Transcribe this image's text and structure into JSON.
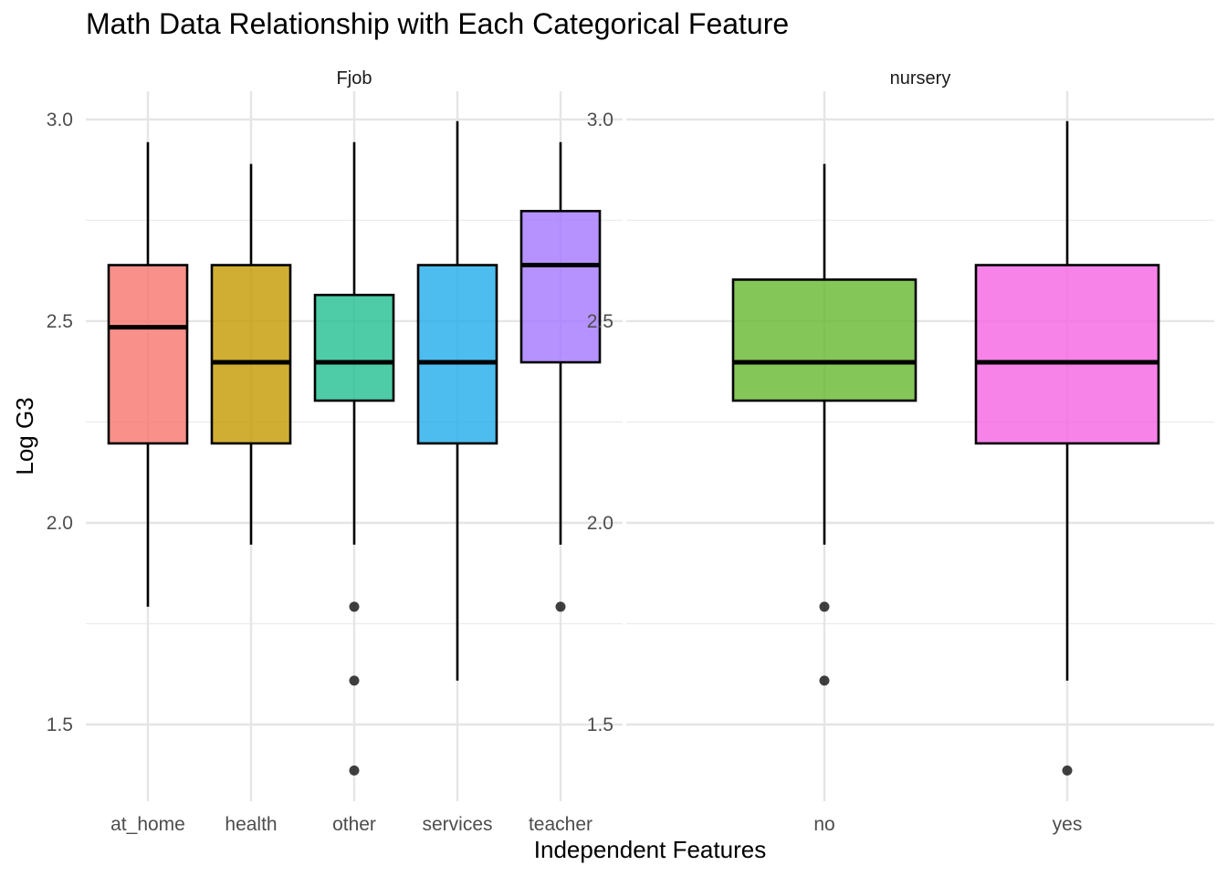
{
  "chart_data": {
    "type": "boxplot",
    "title": "Math Data Relationship with Each Categorical Feature",
    "xlabel": "Independent Features",
    "ylabel": "Log G3",
    "ylim": [
      1.31,
      3.07
    ],
    "yticks": [
      1.5,
      2.0,
      2.5,
      3.0
    ],
    "ytick_labels": [
      "1.5",
      "2.0",
      "2.5",
      "3.0"
    ],
    "grid": true,
    "legend": "none",
    "panels": [
      {
        "name": "Fjob",
        "boxes": [
          {
            "category": "at_home",
            "color": "#F8766D",
            "q1": 2.197,
            "median": 2.485,
            "q3": 2.639,
            "whisker_low": 1.792,
            "whisker_high": 2.944,
            "outliers": []
          },
          {
            "category": "health",
            "color": "#C49A00",
            "q1": 2.197,
            "median": 2.398,
            "q3": 2.639,
            "whisker_low": 1.946,
            "whisker_high": 2.89,
            "outliers": []
          },
          {
            "category": "other",
            "color": "#21BF91",
            "q1": 2.303,
            "median": 2.398,
            "q3": 2.565,
            "whisker_low": 1.946,
            "whisker_high": 2.944,
            "outliers": [
              1.792,
              1.609,
              1.386
            ]
          },
          {
            "category": "services",
            "color": "#21ABEA",
            "q1": 2.197,
            "median": 2.398,
            "q3": 2.639,
            "whisker_low": 1.609,
            "whisker_high": 2.996,
            "outliers": []
          },
          {
            "category": "teacher",
            "color": "#A277FF",
            "q1": 2.398,
            "median": 2.639,
            "q3": 2.773,
            "whisker_low": 1.946,
            "whisker_high": 2.944,
            "outliers": [
              1.792
            ]
          }
        ]
      },
      {
        "name": "nursery",
        "boxes": [
          {
            "category": "no",
            "color": "#66B82E",
            "q1": 2.303,
            "median": 2.398,
            "q3": 2.603,
            "whisker_low": 1.946,
            "whisker_high": 2.89,
            "outliers": [
              1.792,
              1.609
            ]
          },
          {
            "category": "yes",
            "color": "#F564E3",
            "q1": 2.197,
            "median": 2.398,
            "q3": 2.639,
            "whisker_low": 1.609,
            "whisker_high": 2.996,
            "outliers": [
              1.386
            ]
          }
        ]
      }
    ]
  }
}
